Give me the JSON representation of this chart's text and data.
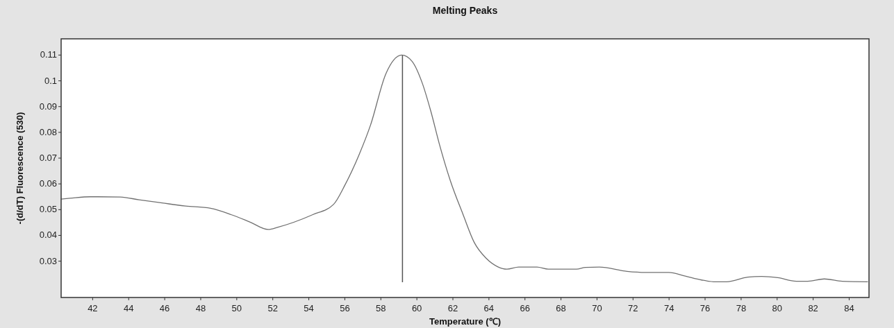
{
  "chart_data": {
    "type": "line",
    "title": "Melting Peaks",
    "xlabel": "Temperature (℃)",
    "ylabel": "-(d/dT) Fluorescence (530)",
    "xlim": [
      40.25,
      85.1
    ],
    "ylim": [
      0.0159,
      0.1163
    ],
    "xticks": [
      42,
      44,
      46,
      48,
      50,
      52,
      54,
      56,
      58,
      60,
      62,
      64,
      66,
      68,
      70,
      72,
      74,
      76,
      78,
      80,
      82,
      84
    ],
    "yticks": [
      0.03,
      0.04,
      0.05,
      0.06,
      0.07,
      0.08,
      0.09,
      0.1,
      0.11
    ],
    "ref_lines": [
      {
        "axis": "x",
        "value": 59.2,
        "color": "#555555"
      }
    ],
    "series": [
      {
        "color": "#707070",
        "x": [
          40.25,
          40.73,
          41.88,
          43.54,
          44.58,
          45.85,
          47.16,
          48.55,
          49.71,
          50.7,
          51.75,
          52.29,
          54.2,
          55.37,
          56.01,
          56.79,
          57.43,
          58.27,
          59.16,
          59.73,
          60.3,
          60.77,
          61.27,
          61.85,
          62.57,
          63.19,
          63.85,
          64.5,
          65.0,
          65.65,
          66.67,
          67.3,
          68.86,
          69.36,
          70.13,
          71.67,
          72.71,
          73.98,
          74.9,
          75.8,
          76.57,
          77.2,
          78.37,
          79.14,
          80.03,
          81.07,
          81.7,
          82.62,
          83.62,
          85.04
        ],
        "values": [
          0.0541,
          0.0544,
          0.055,
          0.0549,
          0.0538,
          0.0526,
          0.0514,
          0.0505,
          0.048,
          0.0453,
          0.0423,
          0.0432,
          0.048,
          0.052,
          0.0596,
          0.0713,
          0.0829,
          0.1026,
          0.11,
          0.1076,
          0.0991,
          0.0883,
          0.0749,
          0.0614,
          0.048,
          0.0372,
          0.0311,
          0.0278,
          0.0269,
          0.0277,
          0.0277,
          0.0269,
          0.0269,
          0.0276,
          0.0277,
          0.026,
          0.0256,
          0.0256,
          0.0242,
          0.0227,
          0.022,
          0.022,
          0.0238,
          0.0241,
          0.0236,
          0.0222,
          0.0222,
          0.0231,
          0.0222,
          0.022
        ]
      }
    ]
  }
}
